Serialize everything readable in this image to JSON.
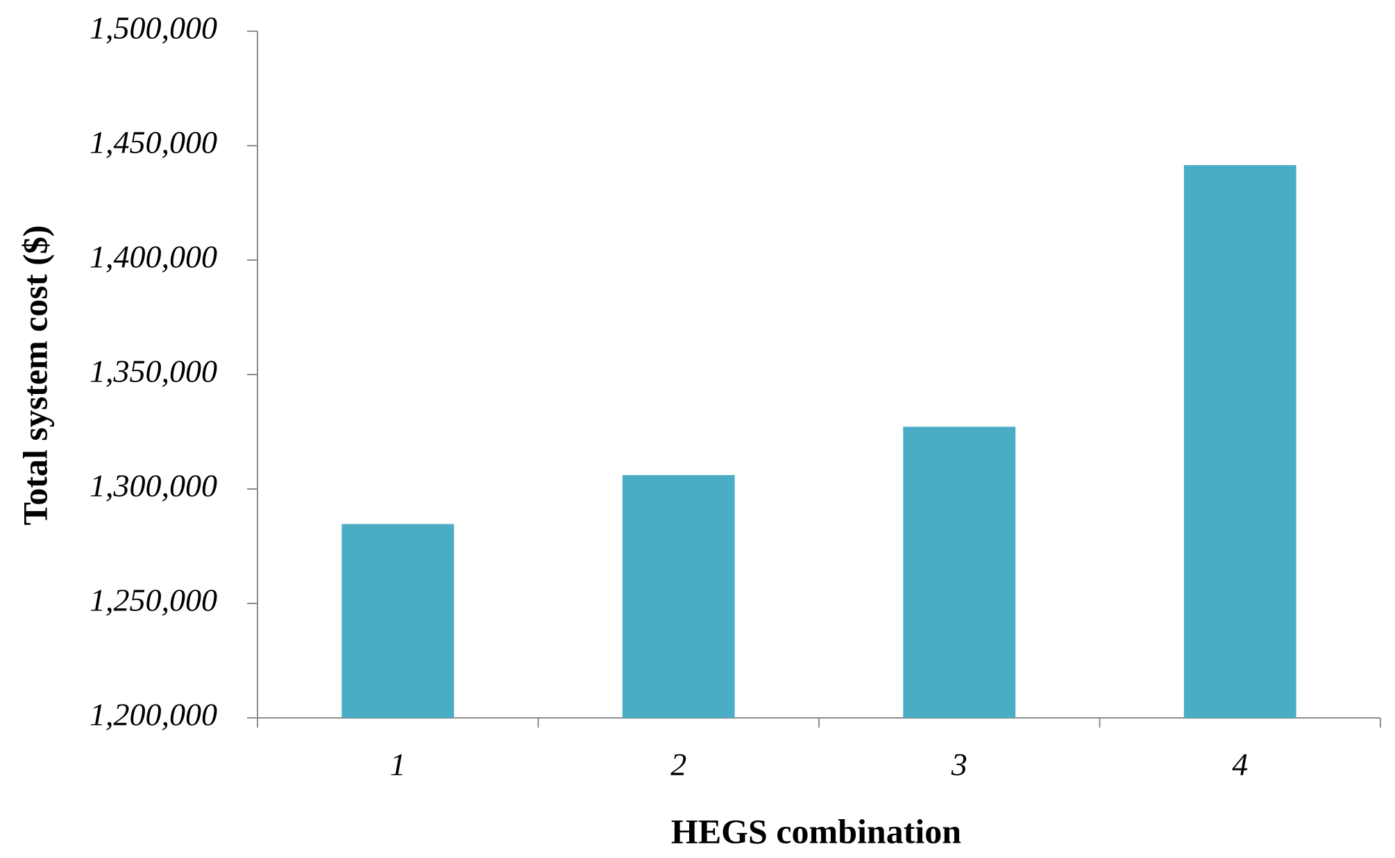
{
  "chart_data": {
    "type": "bar",
    "x_label": "HEGS combination",
    "y_label": "Total system cost ($)",
    "categories": [
      "1",
      "2",
      "3",
      "4"
    ],
    "values": [
      1284700,
      1306100,
      1327200,
      1441500
    ],
    "color": "#4bacc6",
    "ylim": [
      1200000,
      1500000
    ],
    "yticks": [
      {
        "value": 1200000,
        "label": "1,200,000"
      },
      {
        "value": 1250000,
        "label": "1,250,000"
      },
      {
        "value": 1300000,
        "label": "1,300,000"
      },
      {
        "value": 1350000,
        "label": "1,350,000"
      },
      {
        "value": 1400000,
        "label": "1,400,000"
      },
      {
        "value": 1450000,
        "label": "1,450,000"
      },
      {
        "value": 1500000,
        "label": "1,500,000"
      }
    ],
    "grid": false
  }
}
